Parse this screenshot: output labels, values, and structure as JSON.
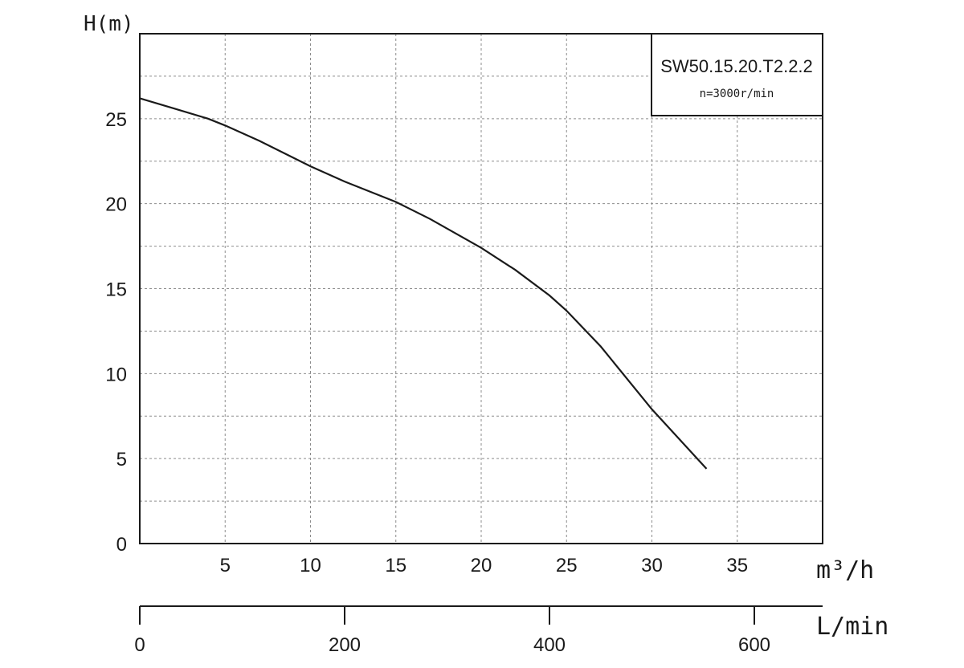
{
  "chart_data": {
    "type": "line",
    "ylabel": "H(m)",
    "xlabel": "m³/h",
    "xlabel_secondary": "L/min",
    "ylim": [
      0,
      30
    ],
    "xlim": [
      0,
      40
    ],
    "secondary_xlim": [
      0,
      666.67
    ],
    "y_ticks": [
      "0",
      "5",
      "10",
      "15",
      "20",
      "25"
    ],
    "x_ticks": [
      "5",
      "10",
      "15",
      "20",
      "25",
      "30",
      "35"
    ],
    "secondary_x_ticks": [
      "0",
      "200",
      "400",
      "600"
    ],
    "grid": true,
    "legend": {
      "placement": "top-right",
      "model": "SW50.15.20.T2.2.2",
      "speed": "n=3000r/min"
    },
    "series": [
      {
        "x": [
          0,
          2,
          4,
          5,
          7,
          10,
          12,
          15,
          17,
          20,
          22,
          24,
          25,
          27,
          30,
          33.2
        ],
        "y": [
          26.2,
          25.6,
          25.0,
          24.6,
          23.7,
          22.2,
          21.3,
          20.1,
          19.1,
          17.4,
          16.1,
          14.6,
          13.7,
          11.6,
          7.9,
          4.4
        ]
      }
    ]
  }
}
